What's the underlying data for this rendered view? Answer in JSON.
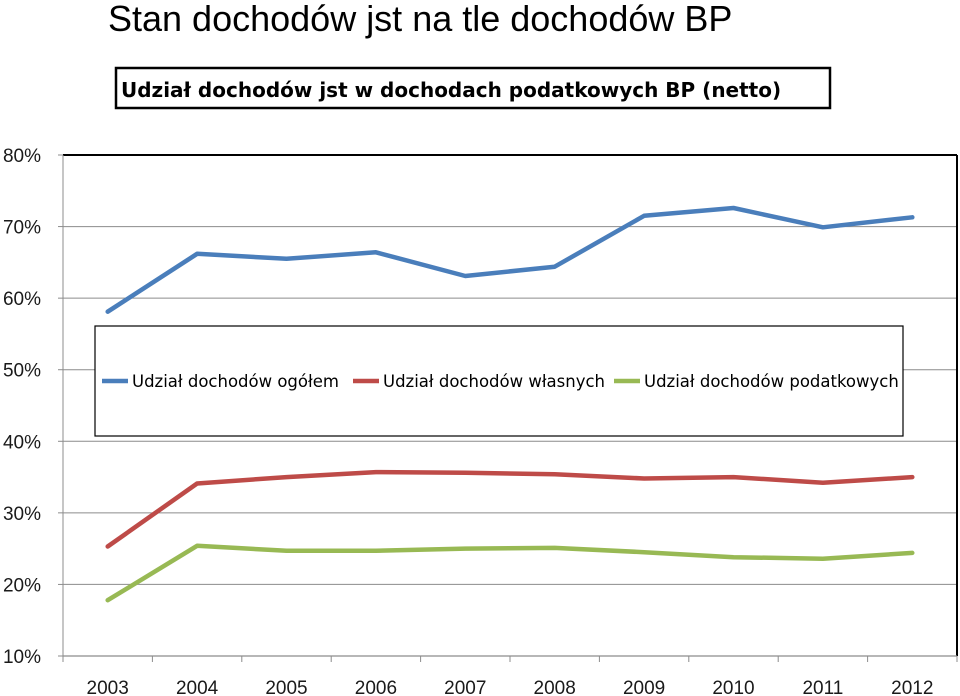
{
  "page": {
    "title": "Stan dochodów jst na tle dochodów BP"
  },
  "chart_data": {
    "type": "line",
    "title": "Udział dochodów jst w dochodach podatkowych BP (netto)",
    "xlabel": "",
    "ylabel": "",
    "categories": [
      "2003",
      "2004",
      "2005",
      "2006",
      "2007",
      "2008",
      "2009",
      "2010",
      "2011",
      "2012"
    ],
    "ylim": [
      10,
      80
    ],
    "yticks": [
      80,
      70,
      60,
      50,
      40,
      30,
      20,
      10
    ],
    "ytick_labels": [
      "80%",
      "70%",
      "60%",
      "50%",
      "40%",
      "30%",
      "20%",
      "10%"
    ],
    "grid": true,
    "legend_position": "center",
    "series": [
      {
        "name": "Udział dochodów ogółem",
        "color": "#4a7ebb",
        "values": [
          58.1,
          66.2,
          65.5,
          66.4,
          63.1,
          64.4,
          71.5,
          72.6,
          69.9,
          71.3
        ]
      },
      {
        "name": "Udział dochodów własnych",
        "color": "#be4b48",
        "values": [
          25.3,
          34.1,
          35.0,
          35.7,
          35.6,
          35.4,
          34.8,
          35.0,
          34.2,
          35.0
        ]
      },
      {
        "name": "Udział dochodów podatkowych",
        "color": "#98b954",
        "values": [
          17.8,
          25.4,
          24.7,
          24.7,
          25.0,
          25.1,
          24.5,
          23.8,
          23.6,
          24.4
        ]
      }
    ]
  }
}
